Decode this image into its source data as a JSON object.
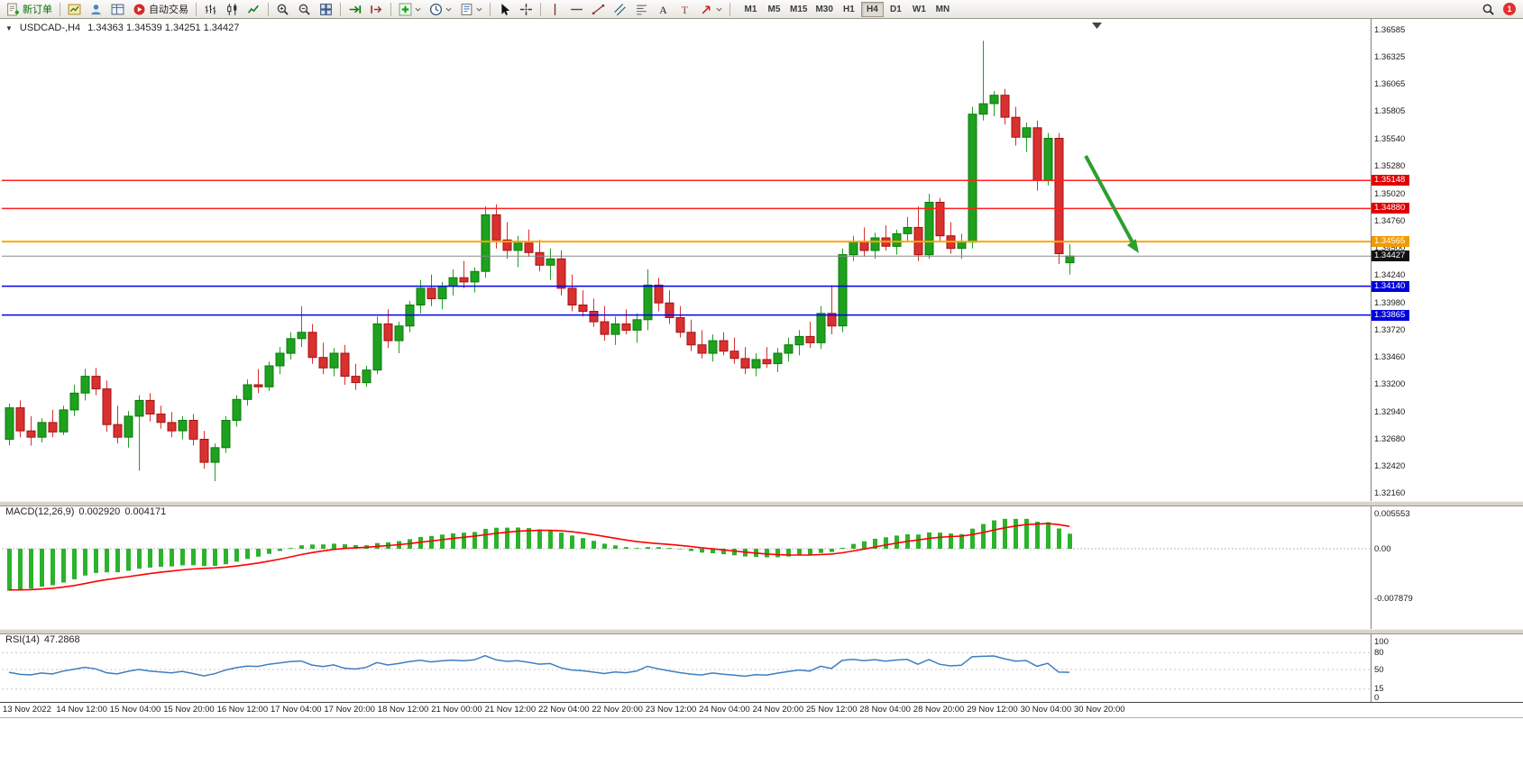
{
  "toolbar": {
    "new_order": "新订单",
    "auto_trading": "自动交易",
    "timeframes": [
      "M1",
      "M5",
      "M15",
      "M30",
      "H1",
      "H4",
      "D1",
      "W1",
      "MN"
    ],
    "active_timeframe": "H4",
    "notification_count": "1"
  },
  "chart": {
    "symbol_period": "USDCAD-,H4",
    "ohlc": "1.34363 1.34539 1.34251 1.34427"
  },
  "chart_data": {
    "type": "candlestick",
    "symbol": "USDCAD",
    "period": "H4",
    "price_ticks": [
      "1.36585",
      "1.36325",
      "1.36065",
      "1.35805",
      "1.35540",
      "1.35280",
      "1.35020",
      "1.34760",
      "1.34500",
      "1.34240",
      "1.33980",
      "1.33720",
      "1.33460",
      "1.33200",
      "1.32940",
      "1.32680",
      "1.32420",
      "1.32160"
    ],
    "levels": [
      {
        "label": "1.35148",
        "value": 1.35148,
        "color": "#ff2020",
        "badge": "#e00000",
        "width": 1.5
      },
      {
        "label": "1.34880",
        "value": 1.3488,
        "color": "#ff2020",
        "badge": "#e00000",
        "width": 1.5
      },
      {
        "label": "1.34565",
        "value": 1.34565,
        "color": "#ffa500",
        "badge": "#f29a00",
        "width": 2
      },
      {
        "label": "1.34427",
        "value": 1.34427,
        "color": "#8a8a8a",
        "badge": "#111111",
        "width": 1
      },
      {
        "label": "1.34140",
        "value": 1.3414,
        "color": "#0000ee",
        "badge": "#0000dd",
        "width": 1.5
      },
      {
        "label": "1.33865",
        "value": 1.33865,
        "color": "#0000ee",
        "badge": "#0000dd",
        "width": 1.5
      }
    ],
    "candles": [
      [
        1.3268,
        1.3302,
        1.3262,
        1.3298
      ],
      [
        1.3298,
        1.3305,
        1.327,
        1.3276
      ],
      [
        1.3276,
        1.329,
        1.3262,
        1.327
      ],
      [
        1.327,
        1.3288,
        1.3265,
        1.3284
      ],
      [
        1.3284,
        1.3296,
        1.327,
        1.3275
      ],
      [
        1.3275,
        1.33,
        1.3272,
        1.3296
      ],
      [
        1.3296,
        1.332,
        1.329,
        1.3312
      ],
      [
        1.3312,
        1.3335,
        1.3305,
        1.3328
      ],
      [
        1.3328,
        1.3336,
        1.331,
        1.3316
      ],
      [
        1.3316,
        1.3324,
        1.3275,
        1.3282
      ],
      [
        1.3282,
        1.33,
        1.3264,
        1.327
      ],
      [
        1.327,
        1.3295,
        1.326,
        1.329
      ],
      [
        1.329,
        1.331,
        1.3238,
        1.3305
      ],
      [
        1.3305,
        1.3312,
        1.3285,
        1.3292
      ],
      [
        1.3292,
        1.33,
        1.3278,
        1.3284
      ],
      [
        1.3284,
        1.3294,
        1.327,
        1.3276
      ],
      [
        1.3276,
        1.329,
        1.3268,
        1.3286
      ],
      [
        1.3286,
        1.3292,
        1.3262,
        1.3268
      ],
      [
        1.3268,
        1.3276,
        1.324,
        1.3246
      ],
      [
        1.3246,
        1.3264,
        1.3228,
        1.326
      ],
      [
        1.326,
        1.329,
        1.3255,
        1.3286
      ],
      [
        1.3286,
        1.331,
        1.328,
        1.3306
      ],
      [
        1.3306,
        1.3325,
        1.33,
        1.332
      ],
      [
        1.332,
        1.3335,
        1.3312,
        1.3318
      ],
      [
        1.3318,
        1.3342,
        1.3314,
        1.3338
      ],
      [
        1.3338,
        1.3356,
        1.333,
        1.335
      ],
      [
        1.335,
        1.337,
        1.3344,
        1.3364
      ],
      [
        1.3364,
        1.3395,
        1.3356,
        1.337
      ],
      [
        1.337,
        1.3378,
        1.334,
        1.3346
      ],
      [
        1.3346,
        1.336,
        1.333,
        1.3336
      ],
      [
        1.3336,
        1.3355,
        1.3328,
        1.335
      ],
      [
        1.335,
        1.3358,
        1.332,
        1.3328
      ],
      [
        1.3328,
        1.334,
        1.3315,
        1.3322
      ],
      [
        1.3322,
        1.3338,
        1.3318,
        1.3334
      ],
      [
        1.3334,
        1.3385,
        1.333,
        1.3378
      ],
      [
        1.3378,
        1.3392,
        1.3355,
        1.3362
      ],
      [
        1.3362,
        1.338,
        1.335,
        1.3376
      ],
      [
        1.3376,
        1.34,
        1.337,
        1.3396
      ],
      [
        1.3396,
        1.342,
        1.3388,
        1.3412
      ],
      [
        1.3412,
        1.3425,
        1.3395,
        1.3402
      ],
      [
        1.3402,
        1.3418,
        1.3392,
        1.3414
      ],
      [
        1.3414,
        1.343,
        1.3405,
        1.3422
      ],
      [
        1.3422,
        1.3438,
        1.3412,
        1.3418
      ],
      [
        1.3418,
        1.3432,
        1.3408,
        1.3428
      ],
      [
        1.3428,
        1.349,
        1.3422,
        1.3482
      ],
      [
        1.3482,
        1.3492,
        1.345,
        1.3458
      ],
      [
        1.3458,
        1.3475,
        1.344,
        1.3448
      ],
      [
        1.3448,
        1.3462,
        1.3432,
        1.3455
      ],
      [
        1.3455,
        1.3468,
        1.3442,
        1.3446
      ],
      [
        1.3446,
        1.3458,
        1.3428,
        1.3434
      ],
      [
        1.3434,
        1.345,
        1.342,
        1.344
      ],
      [
        1.344,
        1.3448,
        1.3405,
        1.3412
      ],
      [
        1.3412,
        1.3425,
        1.339,
        1.3396
      ],
      [
        1.3396,
        1.341,
        1.3385,
        1.339
      ],
      [
        1.339,
        1.3402,
        1.3375,
        1.338
      ],
      [
        1.338,
        1.3395,
        1.3362,
        1.3368
      ],
      [
        1.3368,
        1.3385,
        1.3358,
        1.3378
      ],
      [
        1.3378,
        1.3392,
        1.3368,
        1.3372
      ],
      [
        1.3372,
        1.3388,
        1.336,
        1.3382
      ],
      [
        1.3382,
        1.343,
        1.3372,
        1.3415
      ],
      [
        1.3415,
        1.3422,
        1.339,
        1.3398
      ],
      [
        1.3398,
        1.341,
        1.3378,
        1.3384
      ],
      [
        1.3384,
        1.3395,
        1.3365,
        1.337
      ],
      [
        1.337,
        1.3382,
        1.3352,
        1.3358
      ],
      [
        1.3358,
        1.3372,
        1.3345,
        1.335
      ],
      [
        1.335,
        1.3368,
        1.3342,
        1.3362
      ],
      [
        1.3362,
        1.337,
        1.3348,
        1.3352
      ],
      [
        1.3352,
        1.3365,
        1.334,
        1.3345
      ],
      [
        1.3345,
        1.3356,
        1.333,
        1.3336
      ],
      [
        1.3336,
        1.335,
        1.3328,
        1.3344
      ],
      [
        1.3344,
        1.3356,
        1.3336,
        1.334
      ],
      [
        1.334,
        1.3355,
        1.3332,
        1.335
      ],
      [
        1.335,
        1.3365,
        1.3342,
        1.3358
      ],
      [
        1.3358,
        1.3372,
        1.3348,
        1.3366
      ],
      [
        1.3366,
        1.338,
        1.3355,
        1.336
      ],
      [
        1.336,
        1.3395,
        1.3354,
        1.3388
      ],
      [
        1.3388,
        1.3415,
        1.3368,
        1.3376
      ],
      [
        1.3376,
        1.345,
        1.337,
        1.3444
      ],
      [
        1.3444,
        1.3462,
        1.3438,
        1.3456
      ],
      [
        1.3456,
        1.347,
        1.3442,
        1.3448
      ],
      [
        1.3448,
        1.3465,
        1.344,
        1.346
      ],
      [
        1.346,
        1.3472,
        1.3448,
        1.3452
      ],
      [
        1.3452,
        1.3468,
        1.3444,
        1.3464
      ],
      [
        1.3464,
        1.348,
        1.3456,
        1.347
      ],
      [
        1.347,
        1.349,
        1.3438,
        1.3444
      ],
      [
        1.3444,
        1.3502,
        1.344,
        1.3494
      ],
      [
        1.3494,
        1.3498,
        1.3456,
        1.3462
      ],
      [
        1.3462,
        1.3475,
        1.3445,
        1.345
      ],
      [
        1.345,
        1.3464,
        1.344,
        1.3456
      ],
      [
        1.3456,
        1.3585,
        1.345,
        1.3578
      ],
      [
        1.3578,
        1.3648,
        1.3572,
        1.3588
      ],
      [
        1.3588,
        1.36,
        1.3576,
        1.3596
      ],
      [
        1.3596,
        1.3602,
        1.3568,
        1.3575
      ],
      [
        1.3575,
        1.3585,
        1.3548,
        1.3556
      ],
      [
        1.3556,
        1.357,
        1.3542,
        1.3565
      ],
      [
        1.3565,
        1.3572,
        1.3505,
        1.3515
      ],
      [
        1.3515,
        1.356,
        1.351,
        1.3555
      ],
      [
        1.3555,
        1.356,
        1.3435,
        1.3445
      ],
      [
        1.34363,
        1.34539,
        1.34251,
        1.34427
      ]
    ],
    "macd": {
      "label": "MACD(12,26,9)",
      "value_main": "0.002920",
      "value_signal": "0.004171",
      "scale": {
        "max": "0.005553",
        "zero": "0.00",
        "min": "-0.007879"
      }
    },
    "rsi": {
      "label": "RSI(14)",
      "value": "47.2868",
      "levels": [
        "100",
        "80",
        "50",
        "15",
        "0"
      ]
    },
    "time_labels": [
      "13 Nov 2022",
      "14 Nov 12:00",
      "15 Nov 04:00",
      "15 Nov 20:00",
      "16 Nov 12:00",
      "17 Nov 04:00",
      "17 Nov 20:00",
      "18 Nov 12:00",
      "21 Nov 00:00",
      "21 Nov 12:00",
      "22 Nov 04:00",
      "22 Nov 20:00",
      "23 Nov 12:00",
      "24 Nov 04:00",
      "24 Nov 20:00",
      "25 Nov 12:00",
      "28 Nov 04:00",
      "28 Nov 20:00",
      "29 Nov 12:00",
      "30 Nov 04:00",
      "30 Nov 20:00"
    ],
    "colors": {
      "up": "#1ea11e",
      "up_border": "#0c7a0c",
      "down": "#d93030",
      "down_border": "#a31212",
      "macd_hist": "#2bb32b",
      "macd_signal": "#ff0000",
      "rsi_line": "#3e7ec2",
      "arrow": "#2e9e2e"
    },
    "annotations": [
      {
        "type": "arrow",
        "direction": "down-right",
        "color": "#2e9e2e"
      }
    ]
  }
}
